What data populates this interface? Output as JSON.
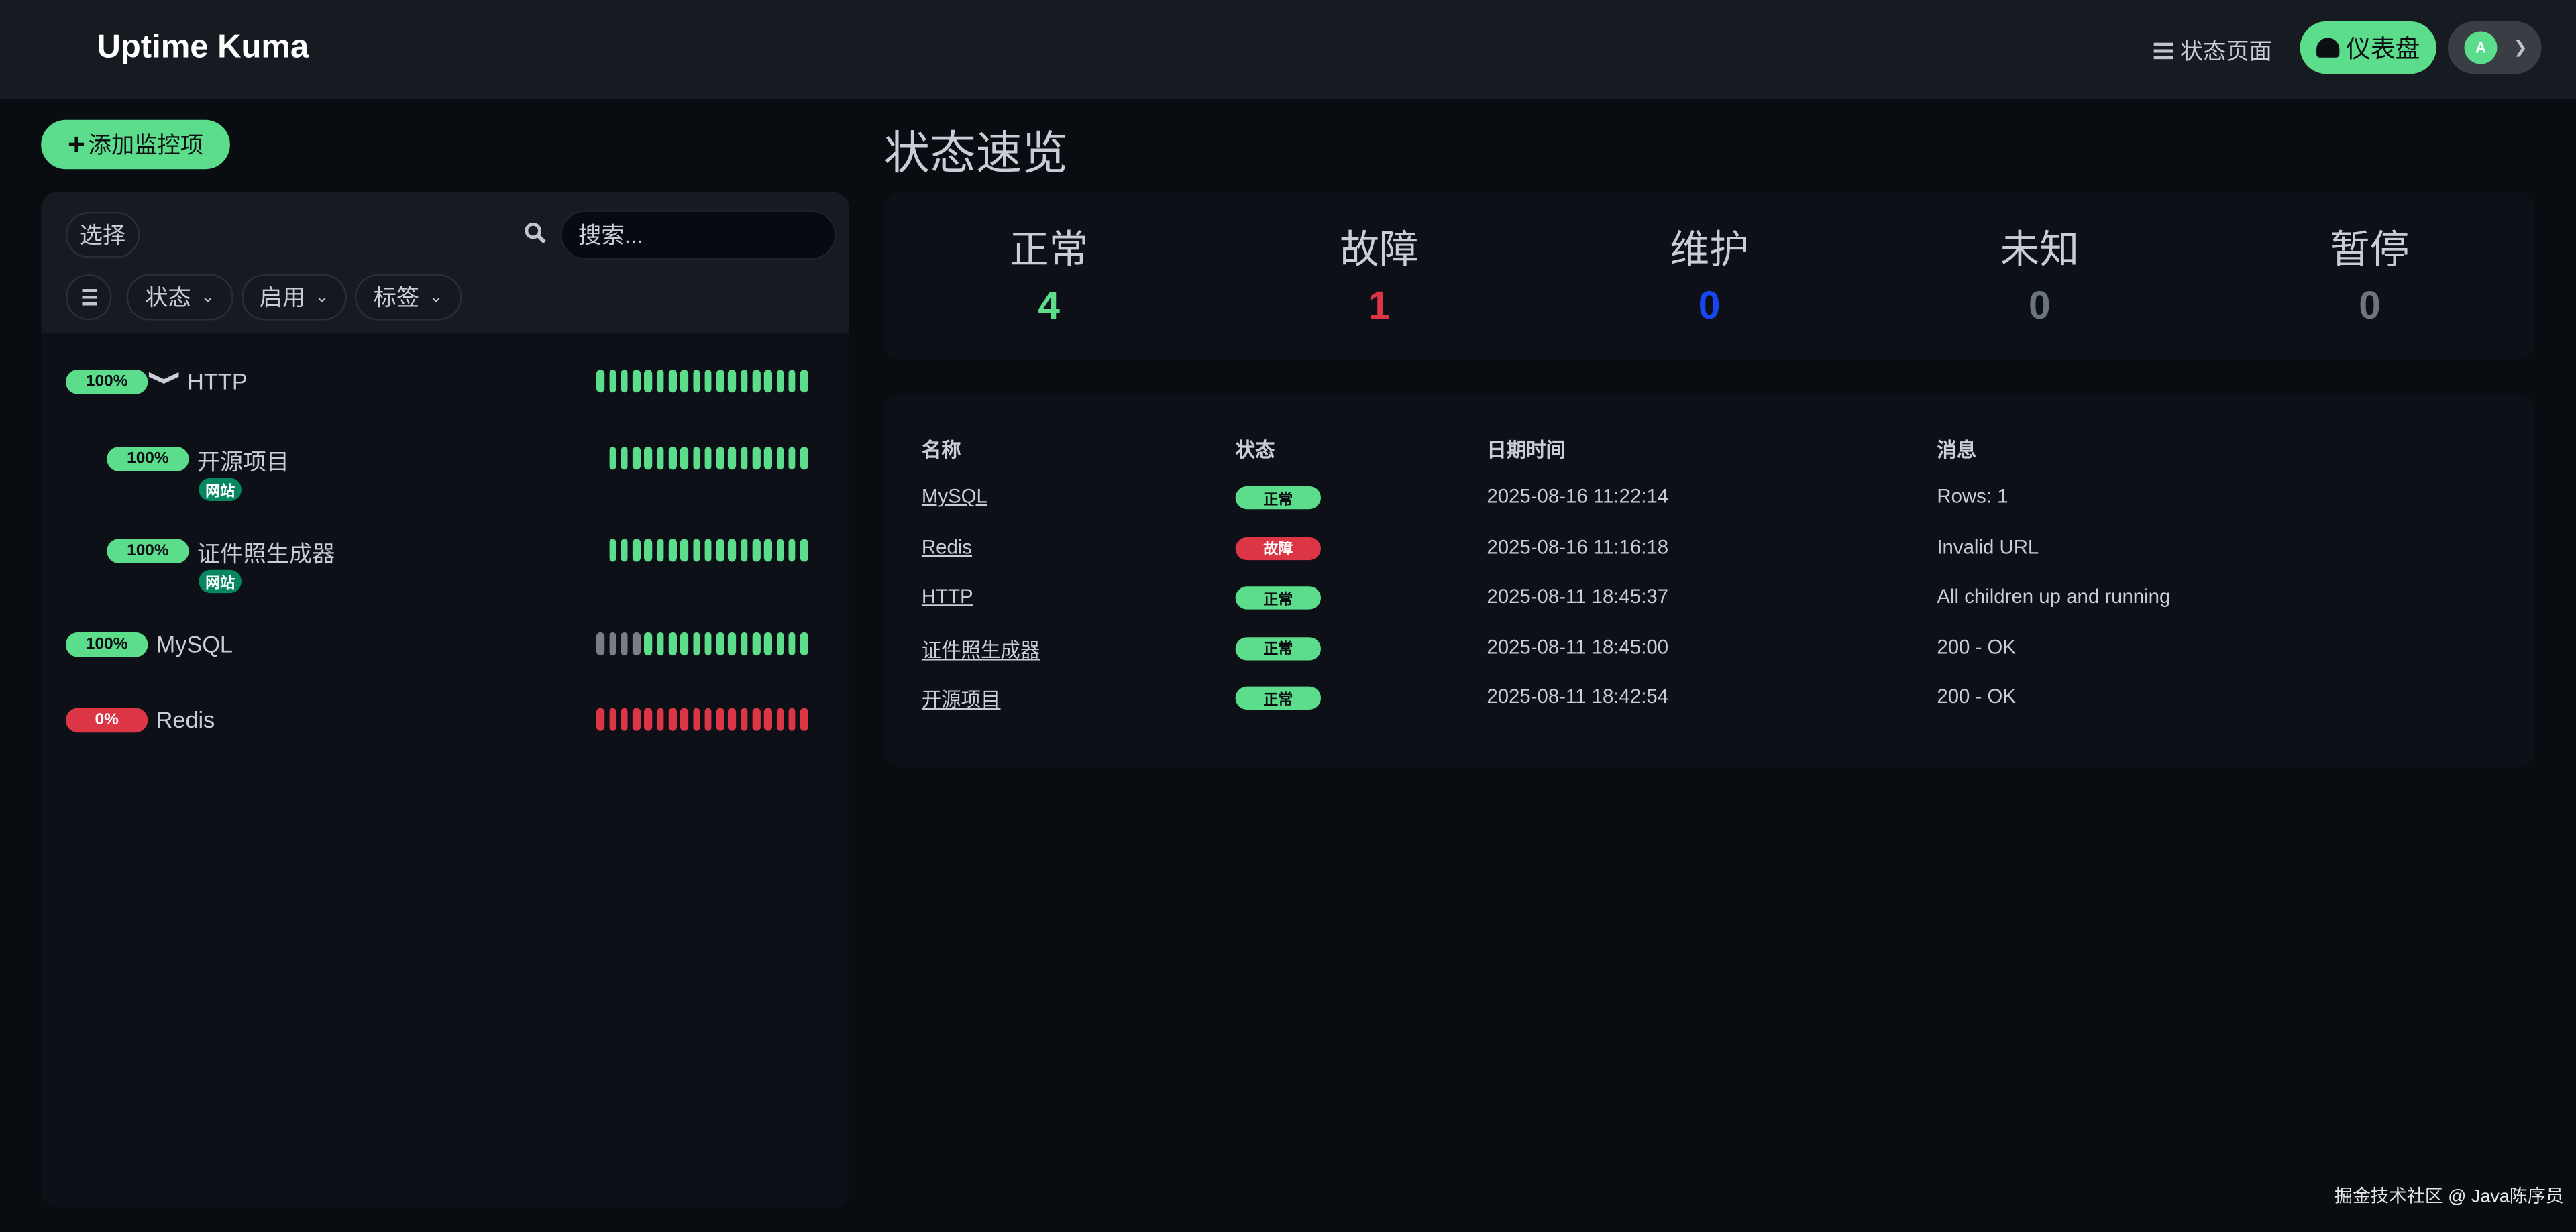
{
  "header": {
    "brand": "Uptime Kuma",
    "status_page": "状态页面",
    "dashboard": "仪表盘",
    "avatar_letter": "A"
  },
  "sidebar": {
    "add_button": "添加监控项",
    "select_button": "选择",
    "search_placeholder": "搜索...",
    "filters": [
      "状态",
      "启用",
      "标签"
    ],
    "monitors": [
      {
        "name": "HTTP",
        "uptime": "100%",
        "status": "up",
        "indent": 0,
        "group": true,
        "tag": null,
        "beats": "uuuuuuuuuuuuuuuuuu"
      },
      {
        "name": "开源项目",
        "uptime": "100%",
        "status": "up",
        "indent": 1,
        "group": false,
        "tag": "网站",
        "beats": "uuuuuuuuuuuuuuuuu"
      },
      {
        "name": "证件照生成器",
        "uptime": "100%",
        "status": "up",
        "indent": 1,
        "group": false,
        "tag": "网站",
        "beats": "uuuuuuuuuuuuuuuuu"
      },
      {
        "name": "MySQL",
        "uptime": "100%",
        "status": "up",
        "indent": 0,
        "group": false,
        "tag": null,
        "beats": "nnnnuuuuuuuuuuuuuu"
      },
      {
        "name": "Redis",
        "uptime": "0%",
        "status": "down",
        "indent": 0,
        "group": false,
        "tag": null,
        "beats": "dddddddddddddddddd"
      }
    ]
  },
  "main": {
    "title": "状态速览",
    "stats": [
      {
        "label": "正常",
        "value": "4",
        "color": "#5cdd8b"
      },
      {
        "label": "故障",
        "value": "1",
        "color": "#dc3545"
      },
      {
        "label": "维护",
        "value": "0",
        "color": "#1747f5"
      },
      {
        "label": "未知",
        "value": "0",
        "color": "#6c757d"
      },
      {
        "label": "暂停",
        "value": "0",
        "color": "#6c757d"
      }
    ],
    "table": {
      "headers": [
        "名称",
        "状态",
        "日期时间",
        "消息"
      ],
      "rows": [
        {
          "name": "MySQL",
          "status": "正常",
          "state": "up",
          "time": "2025-08-16 11:22:14",
          "msg": "Rows: 1"
        },
        {
          "name": "Redis",
          "status": "故障",
          "state": "down",
          "time": "2025-08-16 11:16:18",
          "msg": "Invalid URL"
        },
        {
          "name": "HTTP",
          "status": "正常",
          "state": "up",
          "time": "2025-08-11 18:45:37",
          "msg": "All children up and running"
        },
        {
          "name": "证件照生成器",
          "status": "正常",
          "state": "up",
          "time": "2025-08-11 18:45:00",
          "msg": "200 - OK"
        },
        {
          "name": "开源项目",
          "status": "正常",
          "state": "up",
          "time": "2025-08-11 18:42:54",
          "msg": "200 - OK"
        }
      ]
    }
  },
  "colors": {
    "up": "#5cdd8b",
    "down": "#dc3545",
    "none": "#7a7d82"
  },
  "footer": "掘金技术社区 @ Java陈序员"
}
